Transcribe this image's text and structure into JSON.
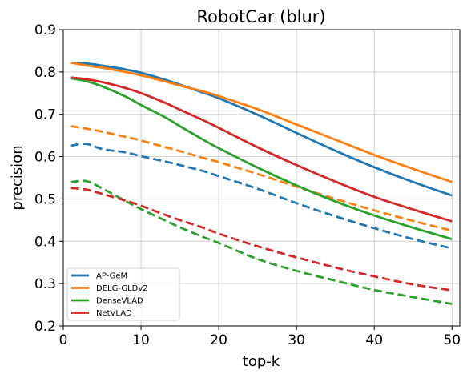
{
  "chart_data": {
    "type": "line",
    "title": "RobotCar (blur)",
    "xlabel": "top-k",
    "ylabel": "precision",
    "xlim": [
      0,
      51
    ],
    "ylim": [
      0.2,
      0.9
    ],
    "xticks": [
      0,
      10,
      20,
      30,
      40,
      50
    ],
    "yticks": [
      0.2,
      0.3,
      0.4,
      0.5,
      0.6,
      0.7,
      0.8,
      0.9
    ],
    "xtick_labels": [
      "0",
      "10",
      "20",
      "30",
      "40",
      "50"
    ],
    "ytick_labels": [
      "0.2",
      "0.3",
      "0.4",
      "0.5",
      "0.6",
      "0.7",
      "0.8",
      "0.9"
    ],
    "grid": true,
    "legend_position": "lower-left",
    "legend": [
      "AP-GeM",
      "DELG-GLDv2",
      "DenseVLAD",
      "NetVLAD"
    ],
    "x": [
      1,
      3,
      5,
      8,
      10,
      13,
      15,
      18,
      20,
      25,
      30,
      35,
      40,
      45,
      50
    ],
    "series": [
      {
        "name": "AP-GeM",
        "style": "solid",
        "color": "#1f77b4",
        "values": [
          0.822,
          0.82,
          0.815,
          0.806,
          0.798,
          0.782,
          0.77,
          0.751,
          0.738,
          0.699,
          0.656,
          0.614,
          0.575,
          0.54,
          0.508
        ]
      },
      {
        "name": "DELG-GLDv2",
        "style": "solid",
        "color": "#ff7f0e",
        "values": [
          0.822,
          0.815,
          0.81,
          0.8,
          0.792,
          0.778,
          0.768,
          0.754,
          0.743,
          0.712,
          0.676,
          0.64,
          0.604,
          0.571,
          0.54
        ]
      },
      {
        "name": "DenseVLAD",
        "style": "solid",
        "color": "#2ca02c",
        "values": [
          0.785,
          0.778,
          0.766,
          0.742,
          0.722,
          0.694,
          0.672,
          0.64,
          0.62,
          0.574,
          0.532,
          0.494,
          0.461,
          0.432,
          0.405
        ]
      },
      {
        "name": "NetVLAD",
        "style": "solid",
        "color": "#d62728",
        "values": [
          0.787,
          0.783,
          0.776,
          0.762,
          0.75,
          0.728,
          0.711,
          0.686,
          0.668,
          0.622,
          0.58,
          0.541,
          0.505,
          0.475,
          0.447
        ]
      },
      {
        "name": "",
        "style": "dashed",
        "color": "#1f77b4",
        "values": [
          0.626,
          0.63,
          0.618,
          0.61,
          0.601,
          0.589,
          0.58,
          0.566,
          0.554,
          0.524,
          0.49,
          0.459,
          0.431,
          0.405,
          0.383
        ]
      },
      {
        "name": "",
        "style": "dashed",
        "color": "#ff7f0e",
        "values": [
          0.672,
          0.666,
          0.659,
          0.647,
          0.638,
          0.623,
          0.613,
          0.597,
          0.587,
          0.559,
          0.529,
          0.5,
          0.473,
          0.448,
          0.425
        ]
      },
      {
        "name": "",
        "style": "dashed",
        "color": "#2ca02c",
        "values": [
          0.54,
          0.542,
          0.525,
          0.495,
          0.476,
          0.45,
          0.433,
          0.41,
          0.396,
          0.358,
          0.33,
          0.307,
          0.285,
          0.268,
          0.252
        ]
      },
      {
        "name": "",
        "style": "dashed",
        "color": "#d62728",
        "values": [
          0.526,
          0.522,
          0.512,
          0.496,
          0.484,
          0.463,
          0.45,
          0.432,
          0.418,
          0.388,
          0.362,
          0.338,
          0.317,
          0.298,
          0.284
        ]
      }
    ]
  }
}
